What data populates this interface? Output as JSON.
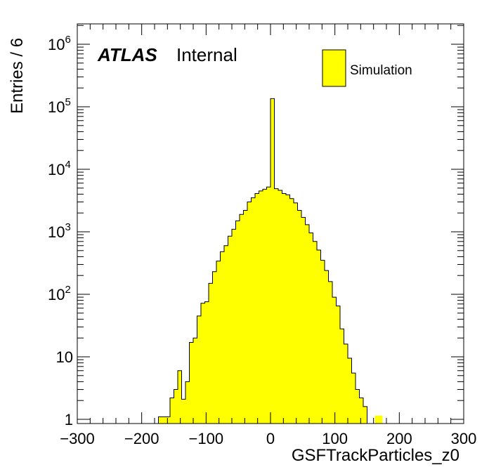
{
  "chart_data": {
    "type": "histogram",
    "xlabel": "GSFTrackParticles_z0",
    "ylabel": "Entries / 6",
    "xlim": [
      -300,
      300
    ],
    "ylim": [
      0.85,
      2000000
    ],
    "yscale": "log",
    "bin_width": 6,
    "x_ticks": [
      "−300",
      "−200",
      "−100",
      "0",
      "100",
      "200",
      "300"
    ],
    "x_tick_values": [
      -300,
      -200,
      -100,
      0,
      100,
      200,
      300
    ],
    "y_ticks": [
      {
        "value": 1,
        "base": "1",
        "exp": ""
      },
      {
        "value": 10,
        "base": "10",
        "exp": ""
      },
      {
        "value": 100,
        "base": "10",
        "exp": "2"
      },
      {
        "value": 1000,
        "base": "10",
        "exp": "3"
      },
      {
        "value": 10000,
        "base": "10",
        "exp": "4"
      },
      {
        "value": 100000,
        "base": "10",
        "exp": "5"
      },
      {
        "value": 1000000,
        "base": "10",
        "exp": "6"
      }
    ],
    "series": [
      {
        "name": "Simulation",
        "color": "#ffff00",
        "edges": [
          -174,
          -168,
          -162,
          -156,
          -150,
          -144,
          -138,
          -132,
          -126,
          -120,
          -114,
          -108,
          -102,
          -96,
          -90,
          -84,
          -78,
          -72,
          -66,
          -60,
          -54,
          -48,
          -42,
          -36,
          -30,
          -24,
          -18,
          -12,
          -6,
          0,
          6,
          12,
          18,
          24,
          30,
          36,
          42,
          48,
          54,
          60,
          66,
          72,
          78,
          84,
          90,
          96,
          102,
          108,
          114,
          120,
          126,
          132,
          138,
          144,
          150
        ],
        "values": [
          1.1,
          1.1,
          1.1,
          2.2,
          3.0,
          6.0,
          2.1,
          4.0,
          17,
          20,
          45,
          72,
          76,
          150,
          230,
          340,
          480,
          600,
          850,
          1100,
          1500,
          1900,
          2200,
          3000,
          3500,
          4100,
          4500,
          4800,
          5200,
          135000,
          4900,
          4600,
          4100,
          3900,
          3400,
          2900,
          2200,
          1700,
          1300,
          960,
          700,
          510,
          350,
          240,
          160,
          90,
          65,
          28,
          16,
          9.5,
          5.5,
          3.0,
          2.2,
          1.6
        ],
        "extra_bins": [
          {
            "x0": 162,
            "x1": 174,
            "value": 1.0
          }
        ]
      }
    ],
    "legend": {
      "position": "top-right",
      "label": "Simulation"
    },
    "annotation": {
      "atlas": "ATLAS",
      "status": "Internal"
    }
  }
}
